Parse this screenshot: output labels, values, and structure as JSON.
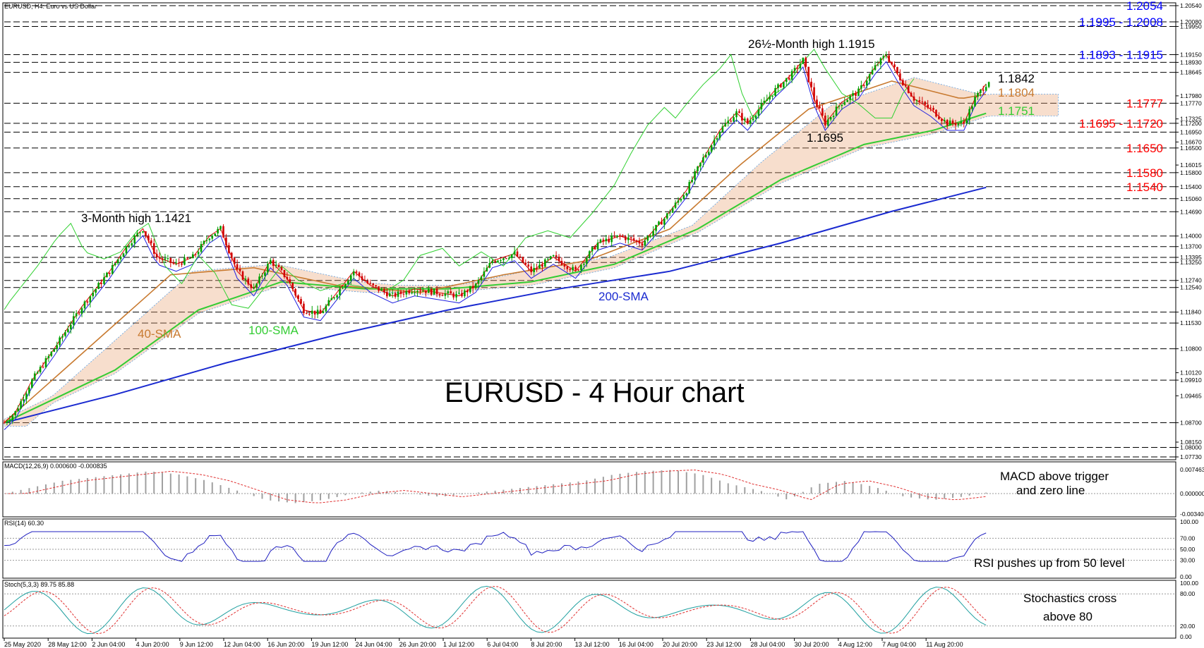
{
  "window_title": "EURUSD, H4:  Euro vs US Dollar",
  "main_title": "EURUSD - 4 Hour chart",
  "colors": {
    "bull": "#00a000",
    "bear": "#d00000",
    "sma40": "#c87a30",
    "sma100": "#33cc33",
    "sma200": "#1a2ad0",
    "tenkan": "#e00000",
    "kijun": "#2020e0",
    "chikou": "#30d030",
    "cloud": "#e8a070",
    "cloud_b": "#60a0e0",
    "macd_hist": "#a0a0a0",
    "macd_signal": "#e03030",
    "rsi": "#2020c0",
    "stoch_main": "#20a0a0",
    "stoch_signal": "#e03030",
    "level_red": "#ff0000",
    "level_blue": "#0000ff"
  },
  "price_axis": {
    "ticks": [
      "1.20540",
      "1.20080",
      "1.19950",
      "1.19150",
      "1.18930",
      "1.18645",
      "1.17980",
      "1.17770",
      "1.17325",
      "1.17200",
      "1.16950",
      "1.16670",
      "1.16500",
      "1.16015",
      "1.15800",
      "1.15400",
      "1.15060",
      "1.14690",
      "1.14000",
      "1.13700",
      "1.13395",
      "1.13250",
      "1.12740",
      "1.12540",
      "1.11840",
      "1.11530",
      "1.10800",
      "1.10120",
      "1.09910",
      "1.09465",
      "1.08700",
      "1.08150",
      "1.08000",
      "1.07730"
    ]
  },
  "x_axis": {
    "labels": [
      "25 May 2020",
      "28 May 12:00",
      "2 Jun 04:00",
      "4 Jun 20:00",
      "9 Jun 12:00",
      "12 Jun 04:00",
      "16 Jun 20:00",
      "19 Jun 12:00",
      "24 Jun 04:00",
      "26 Jun 20:00",
      "1 Jul 12:00",
      "6 Jul 04:00",
      "8 Jul 20:00",
      "13 Jul 12:00",
      "16 Jul 04:00",
      "20 Jul 20:00",
      "23 Jul 12:00",
      "28 Jul 04:00",
      "30 Jul 20:00",
      "4 Aug 12:00",
      "7 Aug 04:00",
      "11 Aug 20:00"
    ]
  },
  "levels": [
    {
      "label": "1.2054",
      "value": 1.2054,
      "color": "blue"
    },
    {
      "label": "1.1995 - 1.2008",
      "value": 1.2008,
      "value2": 1.1995,
      "color": "blue"
    },
    {
      "label": "1.1893 - 1.1915",
      "value": 1.1915,
      "value2": 1.1893,
      "color": "blue"
    },
    {
      "label": "1.1777",
      "value": 1.1777,
      "color": "red"
    },
    {
      "label": "1.1695 - 1.1720",
      "value": 1.172,
      "value2": 1.1695,
      "color": "red"
    },
    {
      "label": "1.1650",
      "value": 1.165,
      "color": "red"
    },
    {
      "label": "1.1580",
      "value": 1.158,
      "color": "red"
    },
    {
      "label": "1.1540",
      "value": 1.154,
      "color": "red"
    }
  ],
  "annotations": {
    "high_26": "26½-Month high 1.1915",
    "high_3m": "3-Month high 1.1421",
    "low_1695": "1.1695",
    "price_1842": "1.1842",
    "price_1804": "1.1804",
    "price_1751": "1.1751",
    "sma40": "40-SMA",
    "sma100": "100-SMA",
    "sma200": "200-SMA"
  },
  "macd": {
    "title": "MACD(12,26,9) 0.000600 -0.000835",
    "ticks": [
      "0.007463",
      "0.000000",
      "-0.003402"
    ],
    "note_1": "MACD above trigger",
    "note_2": "and zero line"
  },
  "rsi": {
    "title": "RSI(14) 60.30",
    "ticks": [
      "100.00",
      "70.00",
      "50.00",
      "30.00",
      "0.00"
    ],
    "note": "RSI pushes up from 50 level"
  },
  "stoch": {
    "title": "Stoch(5,3,3) 89.75 85.88",
    "ticks": [
      "100.00",
      "80.00",
      "20.00",
      "0.00"
    ],
    "note_1": "Stochastics cross",
    "note_2": "above 80"
  },
  "chart_data": {
    "type": "candlestick",
    "title": "EURUSD - 4 Hour chart",
    "symbol": "EURUSD",
    "timeframe": "H4",
    "ylim": [
      1.0773,
      1.2054
    ],
    "price_path": [
      [
        0,
        1.087
      ],
      [
        4,
        1.09
      ],
      [
        10,
        1.099
      ],
      [
        18,
        1.108
      ],
      [
        28,
        1.12
      ],
      [
        38,
        1.13
      ],
      [
        45,
        1.138
      ],
      [
        50,
        1.1421
      ],
      [
        55,
        1.134
      ],
      [
        62,
        1.132
      ],
      [
        68,
        1.134
      ],
      [
        74,
        1.14
      ],
      [
        78,
        1.1421
      ],
      [
        84,
        1.13
      ],
      [
        90,
        1.125
      ],
      [
        96,
        1.133
      ],
      [
        102,
        1.128
      ],
      [
        108,
        1.119
      ],
      [
        114,
        1.118
      ],
      [
        120,
        1.124
      ],
      [
        126,
        1.13
      ],
      [
        132,
        1.126
      ],
      [
        140,
        1.123
      ],
      [
        148,
        1.125
      ],
      [
        156,
        1.124
      ],
      [
        164,
        1.123
      ],
      [
        170,
        1.126
      ],
      [
        176,
        1.133
      ],
      [
        184,
        1.135
      ],
      [
        190,
        1.13
      ],
      [
        198,
        1.134
      ],
      [
        206,
        1.13
      ],
      [
        214,
        1.138
      ],
      [
        222,
        1.14
      ],
      [
        230,
        1.138
      ],
      [
        238,
        1.145
      ],
      [
        246,
        1.153
      ],
      [
        252,
        1.162
      ],
      [
        258,
        1.17
      ],
      [
        264,
        1.175
      ],
      [
        268,
        1.172
      ],
      [
        272,
        1.176
      ],
      [
        278,
        1.1815
      ],
      [
        284,
        1.186
      ],
      [
        288,
        1.19
      ],
      [
        292,
        1.179
      ],
      [
        296,
        1.172
      ],
      [
        302,
        1.178
      ],
      [
        308,
        1.181
      ],
      [
        314,
        1.188
      ],
      [
        318,
        1.1915
      ],
      [
        322,
        1.186
      ],
      [
        328,
        1.179
      ],
      [
        334,
        1.176
      ],
      [
        340,
        1.172
      ],
      [
        346,
        1.172
      ],
      [
        350,
        1.179
      ],
      [
        355,
        1.1842
      ]
    ],
    "sma_path": {
      "sma40": [
        [
          0,
          1.087
        ],
        [
          30,
          1.108
        ],
        [
          60,
          1.129
        ],
        [
          90,
          1.131
        ],
        [
          120,
          1.126
        ],
        [
          150,
          1.124
        ],
        [
          180,
          1.129
        ],
        [
          210,
          1.133
        ],
        [
          240,
          1.142
        ],
        [
          265,
          1.16
        ],
        [
          290,
          1.176
        ],
        [
          320,
          1.184
        ],
        [
          345,
          1.179
        ],
        [
          355,
          1.1804
        ]
      ],
      "sma100": [
        [
          0,
          1.087
        ],
        [
          40,
          1.102
        ],
        [
          70,
          1.119
        ],
        [
          100,
          1.127
        ],
        [
          130,
          1.125
        ],
        [
          160,
          1.125
        ],
        [
          190,
          1.127
        ],
        [
          220,
          1.132
        ],
        [
          250,
          1.142
        ],
        [
          280,
          1.156
        ],
        [
          310,
          1.166
        ],
        [
          335,
          1.17
        ],
        [
          355,
          1.1751
        ]
      ],
      "sma200": [
        [
          0,
          1.087
        ],
        [
          40,
          1.095
        ],
        [
          80,
          1.104
        ],
        [
          120,
          1.112
        ],
        [
          160,
          1.119
        ],
        [
          200,
          1.125
        ],
        [
          240,
          1.13
        ],
        [
          280,
          1.138
        ],
        [
          320,
          1.147
        ],
        [
          355,
          1.154
        ]
      ]
    },
    "macd": {
      "histogram_shape": [
        0,
        0.002,
        0.004,
        0.005,
        0.006,
        0.007,
        0.006,
        0.004,
        0.001,
        -0.002,
        -0.003,
        -0.002,
        0,
        0.001,
        0,
        -0.001,
        0,
        0.001,
        0.002,
        0.003,
        0.004,
        0.006,
        0.007,
        0.0074,
        0.006,
        0.003,
        0.001,
        -0.002,
        0.003,
        0.004,
        0.002,
        -0.001,
        -0.002,
        -0.001,
        0.0006
      ]
    },
    "rsi": {
      "last": 60.3
    },
    "stoch": {
      "main": 89.75,
      "signal": 85.88
    }
  }
}
